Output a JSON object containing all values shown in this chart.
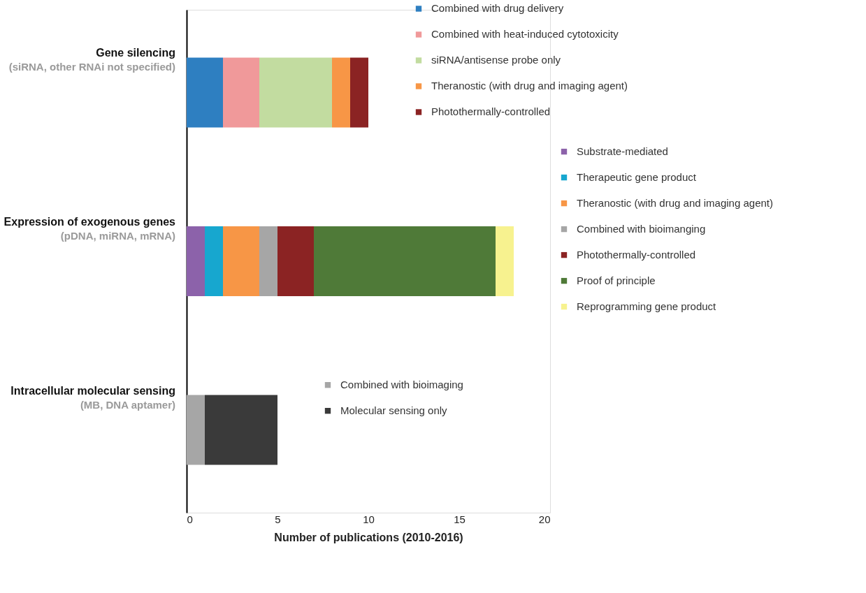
{
  "chart_data": {
    "type": "bar",
    "orientation": "horizontal",
    "stacked": true,
    "legend": "right",
    "categories": [
      "Gene silencing\n(siRNA, other RNAi not specified)",
      "Expression of exogenous genes\n(pDNA, miRNA, mRNA)",
      "Intracellular molecular sensing\n(MB, DNA aptamer)"
    ],
    "xlabel": "Number of publications (2010-2016)",
    "xlim": [
      0,
      20
    ],
    "xticks": [
      0,
      5,
      10,
      15,
      20
    ],
    "series": [
      {
        "name": "Combined with drug delivery",
        "color": "#2e7fc1",
        "values": [
          2,
          null,
          null
        ]
      },
      {
        "name": "Combined with heat-induced cytotoxicity",
        "color": "#f0999a",
        "values": [
          2,
          null,
          null
        ]
      },
      {
        "name": "siRNA/antisense probe only",
        "color": "#c2dca0",
        "values": [
          4,
          null,
          null
        ]
      },
      {
        "name": "Theranostic (with drug and imaging agent)",
        "color": "#f79646",
        "values": [
          1,
          null,
          null
        ]
      },
      {
        "name": "Photothermally-controlled",
        "color": "#8b2323",
        "values": [
          1,
          null,
          null
        ]
      },
      {
        "name": "Substrate-mediated",
        "color": "#8c62aa",
        "values": [
          null,
          1,
          null
        ]
      },
      {
        "name": "Therapeutic gene product",
        "color": "#17a7cf",
        "values": [
          null,
          1,
          null
        ]
      },
      {
        "name": "Theranostic (with drug and imaging agent)",
        "color": "#f79646",
        "values": [
          null,
          2,
          null
        ]
      },
      {
        "name": "Combined with bioimanging",
        "color": "#a6a6a6",
        "values": [
          null,
          1,
          null
        ]
      },
      {
        "name": "Photothermally-controlled",
        "color": "#8b2323",
        "values": [
          null,
          2,
          null
        ]
      },
      {
        "name": "Proof of principle",
        "color": "#4f7a38",
        "values": [
          null,
          10,
          null
        ]
      },
      {
        "name": "Reprogramming gene product",
        "color": "#f7f28f",
        "values": [
          null,
          1,
          null
        ]
      },
      {
        "name": "Combined with bioimaging",
        "color": "#a6a6a6",
        "values": [
          null,
          null,
          1
        ]
      },
      {
        "name": "Molecular sensing only",
        "color": "#3a3a3a",
        "values": [
          null,
          null,
          4
        ]
      }
    ]
  }
}
